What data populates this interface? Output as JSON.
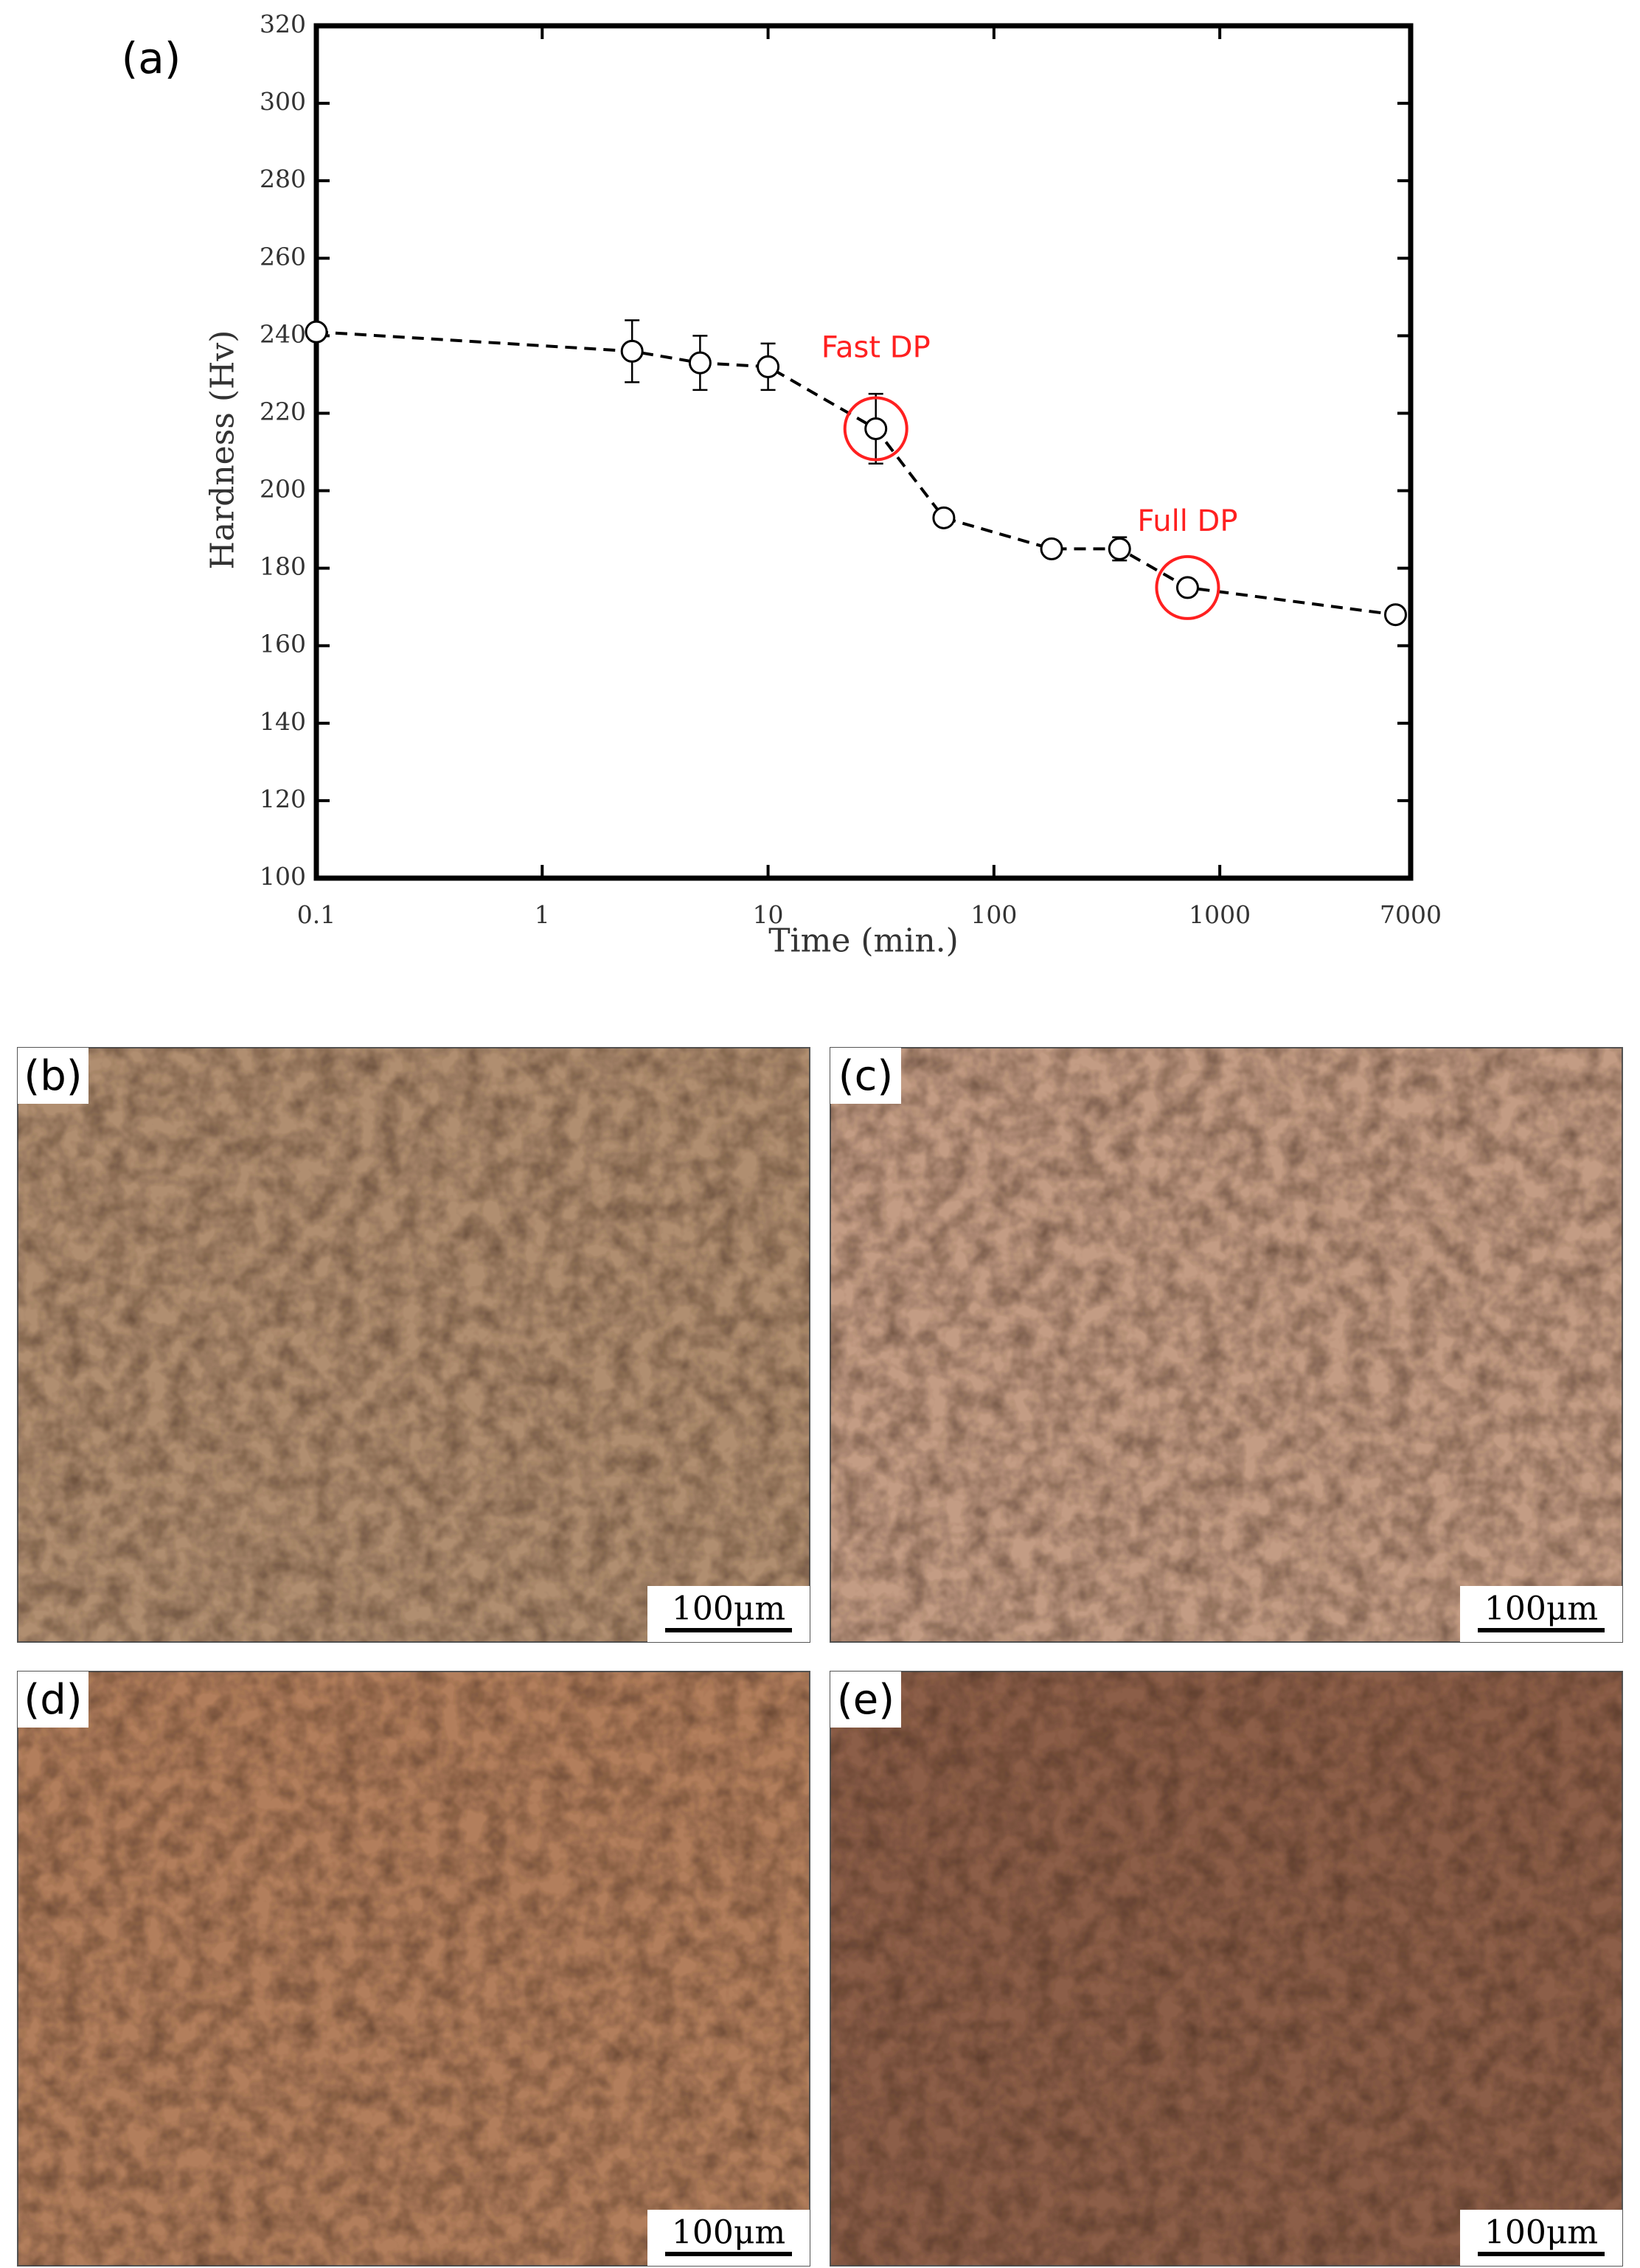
{
  "panel_label": "(a)",
  "chart_data": {
    "type": "line",
    "x": [
      0.1,
      2.5,
      5,
      10,
      30,
      60,
      180,
      360,
      720,
      6000
    ],
    "values": [
      241,
      236,
      233,
      232,
      216,
      193,
      185,
      185,
      175,
      168
    ],
    "errors": [
      1,
      8,
      7,
      6,
      9,
      2,
      2,
      3,
      2,
      2
    ],
    "color": "#000000",
    "xlabel": "Time (min.)",
    "ylabel": "Hardness (Hv)",
    "xlim": [
      0.1,
      7000
    ],
    "xticks": [
      0.1,
      1,
      10,
      100,
      1000,
      7000
    ],
    "xscale": "log",
    "ylim": [
      100,
      320
    ],
    "yticks": [
      100,
      120,
      140,
      160,
      180,
      200,
      220,
      240,
      260,
      280,
      300,
      320
    ],
    "annotations": [
      {
        "text": "Fast DP",
        "x": 30,
        "y": 216,
        "color": "#ff2020"
      },
      {
        "text": "Full DP",
        "x": 720,
        "y": 175,
        "color": "#ff2020"
      }
    ]
  },
  "micrographs": [
    {
      "label": "(b)",
      "scale_bar": "100μm",
      "color": "#b08e70"
    },
    {
      "label": "(c)",
      "scale_bar": "100μm",
      "color": "#c39c84"
    },
    {
      "label": "(d)",
      "scale_bar": "100μm",
      "color": "#b27e5c"
    },
    {
      "label": "(e)",
      "scale_bar": "100μm",
      "color": "#8c5e48"
    }
  ]
}
